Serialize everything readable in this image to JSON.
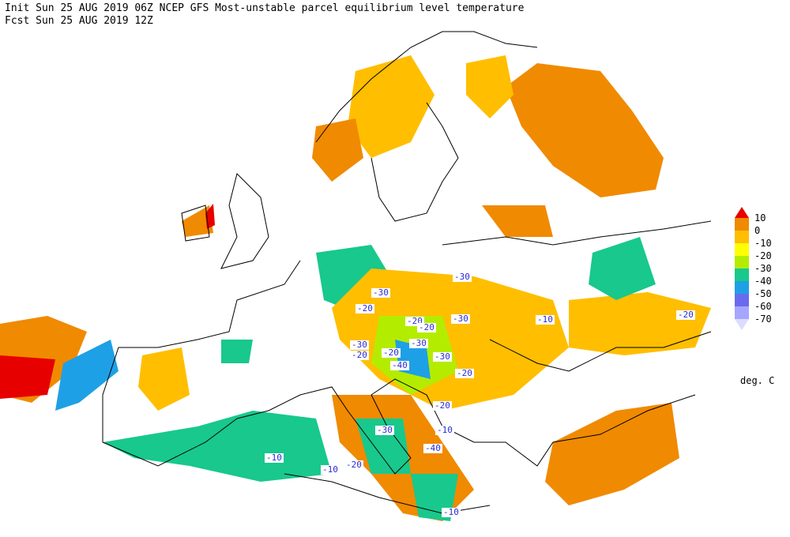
{
  "header": {
    "line1": "Init  Sun 25 AUG 2019 06Z  NCEP GFS Most-unstable parcel equilibrium level temperature",
    "line2": "Fcst Sun 25 AUG 2019 12Z"
  },
  "legend": {
    "levels": [
      10,
      0,
      -10,
      -20,
      -30,
      -40,
      -50,
      -60,
      -70
    ],
    "colors": [
      "#e60000",
      "#f08a00",
      "#ffbe00",
      "#ffff00",
      "#b4ec00",
      "#18c88c",
      "#1ea0e6",
      "#6a6af0",
      "#a6a6ff",
      "#dcdcff"
    ],
    "unit": "deg. C"
  },
  "contour_labels": [
    -30,
    -30,
    -20,
    -20,
    -30,
    -20,
    -30,
    -20,
    -20,
    -40,
    -30,
    -20,
    -30,
    -20,
    -30,
    -10,
    -40,
    -10,
    -20,
    -10,
    -10,
    -20,
    -10
  ]
}
